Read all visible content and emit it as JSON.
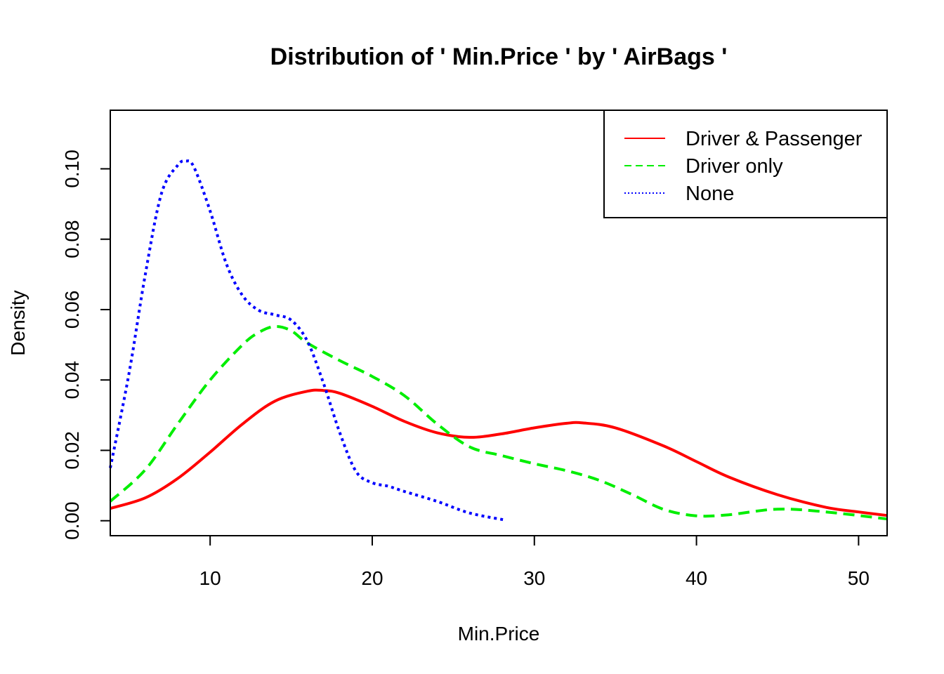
{
  "chart_data": {
    "type": "line",
    "title": "Distribution of ' Min.Price ' by ' AirBags '",
    "xlabel": "Min.Price",
    "ylabel": "Density",
    "xlim": [
      3.84,
      51.76
    ],
    "ylim": [
      -0.00425,
      0.11665
    ],
    "x_ticks": [
      10,
      20,
      30,
      40,
      50
    ],
    "y_ticks": [
      0.0,
      0.02,
      0.04,
      0.06,
      0.08,
      0.1
    ],
    "y_tick_labels": [
      "0.00",
      "0.02",
      "0.04",
      "0.06",
      "0.08",
      "0.10"
    ],
    "grid": false,
    "legend_position": "top-right",
    "series": [
      {
        "name": "Driver & Passenger",
        "color": "#ff0000",
        "line_style": "solid",
        "x": [
          3.84,
          6,
          8,
          10,
          12,
          14,
          16,
          17,
          18,
          20,
          22,
          24,
          26,
          28,
          30,
          32,
          33,
          35,
          38,
          40,
          42,
          45,
          48,
          50,
          51.76
        ],
        "y": [
          0.0035,
          0.0065,
          0.012,
          0.0195,
          0.0275,
          0.034,
          0.0368,
          0.037,
          0.0362,
          0.0325,
          0.0282,
          0.025,
          0.0237,
          0.0247,
          0.0264,
          0.0277,
          0.0278,
          0.0264,
          0.0212,
          0.0168,
          0.0124,
          0.0074,
          0.0038,
          0.0025,
          0.0015
        ]
      },
      {
        "name": "Driver only",
        "color": "#00ee00",
        "line_style": "dashed",
        "x": [
          3.84,
          6,
          8,
          10,
          12,
          13,
          14,
          15,
          16,
          18,
          20,
          22,
          24,
          26,
          28,
          30,
          32,
          34,
          36,
          38,
          40,
          42,
          45,
          48,
          51.76
        ],
        "y": [
          0.0055,
          0.0145,
          0.0275,
          0.04,
          0.05,
          0.0535,
          0.0552,
          0.054,
          0.0505,
          0.0455,
          0.041,
          0.0355,
          0.0275,
          0.021,
          0.0185,
          0.0162,
          0.0142,
          0.0115,
          0.0075,
          0.0032,
          0.0014,
          0.0017,
          0.0033,
          0.0025,
          0.0005
        ]
      },
      {
        "name": "None",
        "color": "#0000ff",
        "line_style": "dotted",
        "x": [
          3.84,
          5,
          6,
          7,
          8,
          8.5,
          9,
          10,
          11,
          12,
          13,
          14,
          15,
          16,
          17,
          18,
          19,
          20,
          21,
          22,
          24,
          26,
          28.2
        ],
        "y": [
          0.015,
          0.042,
          0.07,
          0.093,
          0.101,
          0.1022,
          0.1005,
          0.088,
          0.073,
          0.064,
          0.0598,
          0.0585,
          0.057,
          0.051,
          0.039,
          0.025,
          0.014,
          0.0108,
          0.0098,
          0.0083,
          0.0055,
          0.0022,
          0.0002
        ]
      }
    ]
  }
}
